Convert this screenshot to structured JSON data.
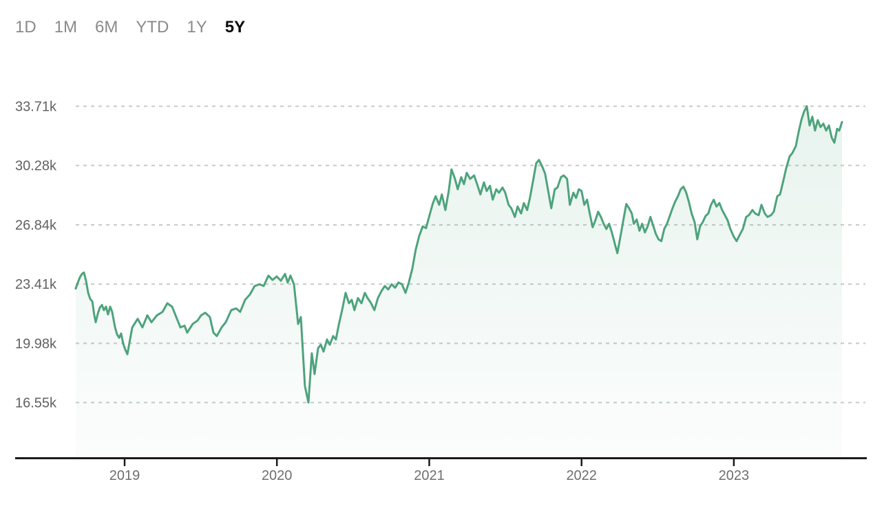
{
  "tabs": {
    "items": [
      {
        "label": "1D",
        "selected": false
      },
      {
        "label": "1M",
        "selected": false
      },
      {
        "label": "6M",
        "selected": false
      },
      {
        "label": "YTD",
        "selected": false
      },
      {
        "label": "1Y",
        "selected": false
      },
      {
        "label": "5Y",
        "selected": true
      }
    ]
  },
  "colors": {
    "background": "#ffffff",
    "line": "#4da37c",
    "fill_top": "rgba(77,163,124,0.13)",
    "fill_bottom": "rgba(77,163,124,0.02)",
    "grid": "#c8c8c8",
    "axis": "#1a1a1a",
    "y_label": "#616161",
    "x_label": "#6e6e6e",
    "tab_inactive": "#8a8a8a",
    "tab_active": "#0a0a0a"
  },
  "chart_data": {
    "type": "area",
    "selected_range": "5Y",
    "unit": "k",
    "grid": "horizontal-dashed",
    "legend": false,
    "xlim": [
      2018.679,
      2023.71
    ],
    "ylim": [
      16.55,
      33.71
    ],
    "y_ticks": [
      {
        "label": "33.71k",
        "value": 33.71
      },
      {
        "label": "30.28k",
        "value": 30.28
      },
      {
        "label": "26.84k",
        "value": 26.84
      },
      {
        "label": "23.41k",
        "value": 23.41
      },
      {
        "label": "19.98k",
        "value": 19.98
      },
      {
        "label": "16.55k",
        "value": 16.55
      }
    ],
    "x_ticks": [
      {
        "label": "2019",
        "value": 2019
      },
      {
        "label": "2020",
        "value": 2020
      },
      {
        "label": "2021",
        "value": 2021
      },
      {
        "label": "2022",
        "value": 2022
      },
      {
        "label": "2023",
        "value": 2023
      }
    ],
    "points": [
      [
        2018.679,
        23.15
      ],
      [
        2018.693,
        23.5
      ],
      [
        2018.706,
        23.8
      ],
      [
        2018.72,
        24.0
      ],
      [
        2018.733,
        24.08
      ],
      [
        2018.747,
        23.6
      ],
      [
        2018.761,
        22.9
      ],
      [
        2018.774,
        22.55
      ],
      [
        2018.788,
        22.4
      ],
      [
        2018.801,
        21.6
      ],
      [
        2018.81,
        21.2
      ],
      [
        2018.824,
        21.7
      ],
      [
        2018.837,
        22.05
      ],
      [
        2018.851,
        22.2
      ],
      [
        2018.864,
        21.9
      ],
      [
        2018.878,
        22.1
      ],
      [
        2018.891,
        21.65
      ],
      [
        2018.905,
        22.1
      ],
      [
        2018.918,
        21.8
      ],
      [
        2018.937,
        20.9
      ],
      [
        2018.95,
        20.5
      ],
      [
        2018.964,
        20.3
      ],
      [
        2018.977,
        20.55
      ],
      [
        2018.991,
        19.95
      ],
      [
        2019.005,
        19.6
      ],
      [
        2019.018,
        19.35
      ],
      [
        2019.05,
        20.9
      ],
      [
        2019.086,
        21.4
      ],
      [
        2019.117,
        20.9
      ],
      [
        2019.149,
        21.6
      ],
      [
        2019.176,
        21.2
      ],
      [
        2019.212,
        21.6
      ],
      [
        2019.249,
        21.8
      ],
      [
        2019.28,
        22.3
      ],
      [
        2019.312,
        22.1
      ],
      [
        2019.339,
        21.5
      ],
      [
        2019.366,
        20.9
      ],
      [
        2019.393,
        21.0
      ],
      [
        2019.411,
        20.6
      ],
      [
        2019.447,
        21.1
      ],
      [
        2019.479,
        21.3
      ],
      [
        2019.502,
        21.6
      ],
      [
        2019.529,
        21.75
      ],
      [
        2019.56,
        21.5
      ],
      [
        2019.583,
        20.6
      ],
      [
        2019.605,
        20.4
      ],
      [
        2019.637,
        20.9
      ],
      [
        2019.664,
        21.2
      ],
      [
        2019.7,
        21.9
      ],
      [
        2019.732,
        22.0
      ],
      [
        2019.759,
        21.8
      ],
      [
        2019.791,
        22.5
      ],
      [
        2019.822,
        22.8
      ],
      [
        2019.854,
        23.3
      ],
      [
        2019.886,
        23.4
      ],
      [
        2019.913,
        23.3
      ],
      [
        2019.944,
        23.9
      ],
      [
        2019.971,
        23.65
      ],
      [
        2019.999,
        23.85
      ],
      [
        2020.026,
        23.6
      ],
      [
        2020.053,
        24.0
      ],
      [
        2020.071,
        23.5
      ],
      [
        2020.089,
        23.9
      ],
      [
        2020.112,
        23.4
      ],
      [
        2020.139,
        21.1
      ],
      [
        2020.157,
        21.5
      ],
      [
        2020.184,
        17.5
      ],
      [
        2020.207,
        16.55
      ],
      [
        2020.229,
        19.4
      ],
      [
        2020.247,
        18.2
      ],
      [
        2020.27,
        19.7
      ],
      [
        2020.288,
        19.9
      ],
      [
        2020.306,
        19.5
      ],
      [
        2020.329,
        20.2
      ],
      [
        2020.347,
        19.9
      ],
      [
        2020.369,
        20.4
      ],
      [
        2020.387,
        20.2
      ],
      [
        2020.405,
        21.0
      ],
      [
        2020.428,
        21.9
      ],
      [
        2020.451,
        22.9
      ],
      [
        2020.473,
        22.3
      ],
      [
        2020.491,
        22.5
      ],
      [
        2020.509,
        21.9
      ],
      [
        2020.532,
        22.6
      ],
      [
        2020.555,
        22.3
      ],
      [
        2020.577,
        22.9
      ],
      [
        2020.595,
        22.6
      ],
      [
        2020.618,
        22.3
      ],
      [
        2020.64,
        21.9
      ],
      [
        2020.663,
        22.6
      ],
      [
        2020.686,
        23.0
      ],
      [
        2020.708,
        23.3
      ],
      [
        2020.731,
        23.1
      ],
      [
        2020.753,
        23.4
      ],
      [
        2020.776,
        23.2
      ],
      [
        2020.798,
        23.5
      ],
      [
        2020.821,
        23.4
      ],
      [
        2020.844,
        22.9
      ],
      [
        2020.866,
        23.5
      ],
      [
        2020.889,
        24.3
      ],
      [
        2020.911,
        25.4
      ],
      [
        2020.934,
        26.2
      ],
      [
        2020.957,
        26.75
      ],
      [
        2020.979,
        26.65
      ],
      [
        2021.002,
        27.4
      ],
      [
        2021.024,
        28.1
      ],
      [
        2021.042,
        28.5
      ],
      [
        2021.065,
        28.0
      ],
      [
        2021.083,
        28.6
      ],
      [
        2021.106,
        27.7
      ],
      [
        2021.128,
        28.8
      ],
      [
        2021.146,
        30.05
      ],
      [
        2021.169,
        29.5
      ],
      [
        2021.187,
        28.9
      ],
      [
        2021.21,
        29.6
      ],
      [
        2021.228,
        29.2
      ],
      [
        2021.246,
        29.85
      ],
      [
        2021.268,
        29.5
      ],
      [
        2021.295,
        29.7
      ],
      [
        2021.318,
        29.1
      ],
      [
        2021.336,
        28.6
      ],
      [
        2021.359,
        29.3
      ],
      [
        2021.377,
        28.8
      ],
      [
        2021.399,
        29.1
      ],
      [
        2021.417,
        28.3
      ],
      [
        2021.44,
        28.9
      ],
      [
        2021.458,
        28.7
      ],
      [
        2021.481,
        29.0
      ],
      [
        2021.499,
        28.7
      ],
      [
        2021.521,
        28.0
      ],
      [
        2021.539,
        27.8
      ],
      [
        2021.562,
        27.3
      ],
      [
        2021.58,
        27.9
      ],
      [
        2021.603,
        27.5
      ],
      [
        2021.621,
        28.1
      ],
      [
        2021.643,
        27.7
      ],
      [
        2021.661,
        28.4
      ],
      [
        2021.684,
        29.5
      ],
      [
        2021.702,
        30.4
      ],
      [
        2021.72,
        30.6
      ],
      [
        2021.743,
        30.2
      ],
      [
        2021.761,
        29.8
      ],
      [
        2021.783,
        28.7
      ],
      [
        2021.801,
        27.8
      ],
      [
        2021.824,
        28.9
      ],
      [
        2021.842,
        29.0
      ],
      [
        2021.865,
        29.6
      ],
      [
        2021.883,
        29.7
      ],
      [
        2021.905,
        29.5
      ],
      [
        2021.923,
        28.0
      ],
      [
        2021.946,
        28.7
      ],
      [
        2021.964,
        28.4
      ],
      [
        2021.982,
        28.9
      ],
      [
        2022.0,
        28.8
      ],
      [
        2022.018,
        28.0
      ],
      [
        2022.036,
        28.3
      ],
      [
        2022.054,
        27.5
      ],
      [
        2022.073,
        26.7
      ],
      [
        2022.091,
        27.1
      ],
      [
        2022.109,
        27.6
      ],
      [
        2022.127,
        27.3
      ],
      [
        2022.145,
        26.9
      ],
      [
        2022.163,
        26.6
      ],
      [
        2022.181,
        26.9
      ],
      [
        2022.199,
        26.4
      ],
      [
        2022.217,
        25.8
      ],
      [
        2022.235,
        25.2
      ],
      [
        2022.258,
        26.3
      ],
      [
        2022.276,
        27.2
      ],
      [
        2022.294,
        28.05
      ],
      [
        2022.312,
        27.8
      ],
      [
        2022.33,
        27.5
      ],
      [
        2022.343,
        26.9
      ],
      [
        2022.362,
        27.15
      ],
      [
        2022.38,
        26.5
      ],
      [
        2022.398,
        26.9
      ],
      [
        2022.416,
        26.4
      ],
      [
        2022.434,
        26.75
      ],
      [
        2022.452,
        27.3
      ],
      [
        2022.47,
        26.8
      ],
      [
        2022.488,
        26.3
      ],
      [
        2022.506,
        26.0
      ],
      [
        2022.524,
        25.9
      ],
      [
        2022.543,
        26.6
      ],
      [
        2022.561,
        26.9
      ],
      [
        2022.579,
        27.35
      ],
      [
        2022.597,
        27.8
      ],
      [
        2022.615,
        28.2
      ],
      [
        2022.633,
        28.5
      ],
      [
        2022.651,
        28.9
      ],
      [
        2022.669,
        29.05
      ],
      [
        2022.687,
        28.7
      ],
      [
        2022.705,
        28.15
      ],
      [
        2022.723,
        27.5
      ],
      [
        2022.742,
        27.0
      ],
      [
        2022.76,
        26.0
      ],
      [
        2022.778,
        26.75
      ],
      [
        2022.796,
        27.0
      ],
      [
        2022.814,
        27.35
      ],
      [
        2022.832,
        27.5
      ],
      [
        2022.85,
        28.0
      ],
      [
        2022.868,
        28.3
      ],
      [
        2022.886,
        27.9
      ],
      [
        2022.905,
        28.1
      ],
      [
        2022.923,
        27.7
      ],
      [
        2022.941,
        27.4
      ],
      [
        2022.959,
        27.1
      ],
      [
        2022.977,
        26.6
      ],
      [
        2023.0,
        26.15
      ],
      [
        2023.018,
        25.9
      ],
      [
        2023.041,
        26.3
      ],
      [
        2023.059,
        26.6
      ],
      [
        2023.081,
        27.3
      ],
      [
        2023.099,
        27.4
      ],
      [
        2023.122,
        27.7
      ],
      [
        2023.14,
        27.5
      ],
      [
        2023.163,
        27.4
      ],
      [
        2023.181,
        28.0
      ],
      [
        2023.203,
        27.5
      ],
      [
        2023.221,
        27.3
      ],
      [
        2023.244,
        27.4
      ],
      [
        2023.262,
        27.6
      ],
      [
        2023.285,
        28.5
      ],
      [
        2023.303,
        28.6
      ],
      [
        2023.325,
        29.4
      ],
      [
        2023.343,
        30.1
      ],
      [
        2023.366,
        30.8
      ],
      [
        2023.384,
        31.0
      ],
      [
        2023.407,
        31.4
      ],
      [
        2023.425,
        32.2
      ],
      [
        2023.443,
        32.9
      ],
      [
        2023.461,
        33.4
      ],
      [
        2023.479,
        33.71
      ],
      [
        2023.497,
        32.6
      ],
      [
        2023.515,
        33.1
      ],
      [
        2023.533,
        32.3
      ],
      [
        2023.551,
        32.9
      ],
      [
        2023.569,
        32.5
      ],
      [
        2023.588,
        32.7
      ],
      [
        2023.606,
        32.3
      ],
      [
        2023.624,
        32.6
      ],
      [
        2023.642,
        31.9
      ],
      [
        2023.66,
        31.6
      ],
      [
        2023.678,
        32.4
      ],
      [
        2023.692,
        32.3
      ],
      [
        2023.71,
        32.8
      ]
    ]
  }
}
